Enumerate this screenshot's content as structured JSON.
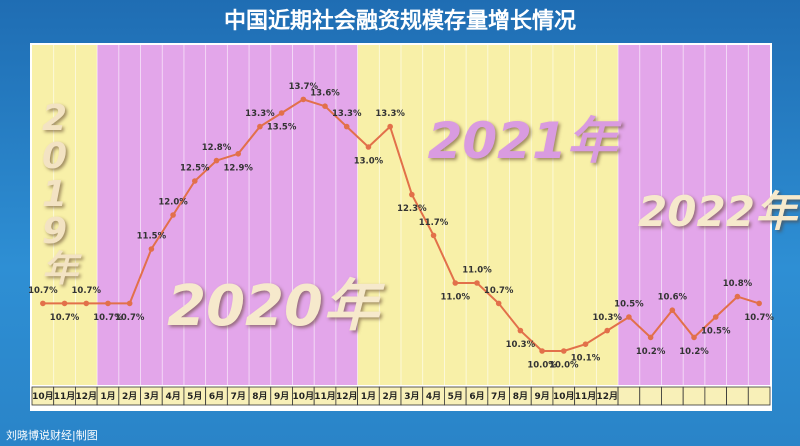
{
  "chart_data": {
    "type": "line",
    "title": "中国近期社会融资规模存量增长情况",
    "categories": [
      "10月",
      "11月",
      "12月",
      "1月",
      "2月",
      "3月",
      "4月",
      "5月",
      "6月",
      "7月",
      "8月",
      "9月",
      "10月",
      "11月",
      "12月",
      "1月",
      "2月",
      "3月",
      "4月",
      "5月",
      "6月",
      "7月",
      "8月",
      "9月",
      "10月",
      "11月",
      "12月",
      null,
      null,
      null,
      null,
      null,
      null,
      null
    ],
    "series": [
      {
        "name": null,
        "color": "#e2704a",
        "values": [
          10.7,
          10.7,
          10.7,
          10.7,
          10.7,
          11.5,
          12.0,
          12.5,
          12.8,
          12.9,
          13.3,
          13.5,
          13.7,
          13.6,
          13.3,
          13.0,
          13.3,
          12.3,
          11.7,
          11.0,
          11.0,
          10.7,
          10.3,
          10.0,
          10.0,
          10.1,
          10.3,
          10.5,
          10.2,
          10.6,
          10.2,
          10.5,
          10.8,
          10.7
        ],
        "value_labels": [
          "10.7%",
          "10.7%",
          "10.7%",
          "10.7%",
          "10.7%",
          "11.5%",
          "12.0%",
          "12.5%",
          "12.8%",
          "12.9%",
          "13.3%",
          "13.5%",
          "13.7%",
          "13.6%",
          "13.3%",
          "13.0%",
          "13.3%",
          "12.3%",
          "11.7%",
          "11.0%",
          "11.0%",
          "10.7%",
          "10.3%",
          "10.0%",
          "10.0%",
          "10.1%",
          "10.3%",
          "10.5%",
          "10.2%",
          "10.6%",
          "10.2%",
          "10.5%",
          "10.8%",
          "10.7%"
        ]
      }
    ],
    "bands": [
      {
        "label": "2019年",
        "start": 0,
        "end": 2,
        "color": "#f8f0a8",
        "label_color": "#f3e3c3"
      },
      {
        "label": "2020年",
        "start": 3,
        "end": 14,
        "color": "#e3a6ea",
        "label_color": "#f6e9cc"
      },
      {
        "label": "2021年",
        "start": 15,
        "end": 26,
        "color": "#f8f0a8",
        "label_color": "#d99be0"
      },
      {
        "label": "2022年",
        "start": 27,
        "end": 33,
        "color": "#e3a6ea",
        "label_color": "#f6e9cc"
      }
    ],
    "ylim": [
      9.5,
      14.5
    ],
    "credit": "刘晓博说财经|制图"
  }
}
